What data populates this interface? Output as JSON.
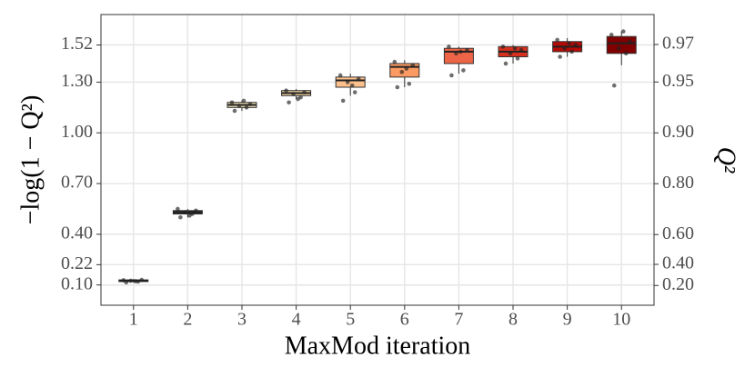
{
  "chart_data": {
    "type": "box",
    "x_label": "MaxMod iteration",
    "y_label": "−log(1 − Q²)",
    "y2_label": "Q²",
    "y2_scale": "neglog10-one-minus",
    "categories": [
      "1",
      "2",
      "3",
      "4",
      "5",
      "6",
      "7",
      "8",
      "9",
      "10"
    ],
    "boxes": [
      {
        "whisker_low": 0.115,
        "q1": 0.12,
        "median": 0.125,
        "q3": 0.13,
        "whisker_high": 0.135,
        "color": "#3a3a3a",
        "points": [
          0.115,
          0.12,
          0.125,
          0.13,
          0.128,
          0.122
        ]
      },
      {
        "whisker_low": 0.5,
        "q1": 0.52,
        "median": 0.53,
        "q3": 0.54,
        "whisker_high": 0.55,
        "color": "#2e2e2e",
        "points": [
          0.5,
          0.52,
          0.53,
          0.54,
          0.55,
          0.51
        ]
      },
      {
        "whisker_low": 1.13,
        "q1": 1.15,
        "median": 1.165,
        "q3": 1.18,
        "whisker_high": 1.19,
        "color": "#f3e3b6",
        "points": [
          1.13,
          1.15,
          1.16,
          1.17,
          1.18,
          1.19
        ]
      },
      {
        "whisker_low": 1.2,
        "q1": 1.22,
        "median": 1.235,
        "q3": 1.25,
        "whisker_high": 1.26,
        "color": "#f8d8a4",
        "points": [
          1.18,
          1.21,
          1.23,
          1.24,
          1.25,
          1.2
        ]
      },
      {
        "whisker_low": 1.22,
        "q1": 1.27,
        "median": 1.31,
        "q3": 1.33,
        "whisker_high": 1.35,
        "color": "#fbc08c",
        "points": [
          1.19,
          1.24,
          1.3,
          1.32,
          1.34,
          1.28
        ]
      },
      {
        "whisker_low": 1.27,
        "q1": 1.33,
        "median": 1.39,
        "q3": 1.41,
        "whisker_high": 1.43,
        "color": "#fb9a62",
        "points": [
          1.27,
          1.29,
          1.36,
          1.4,
          1.42,
          1.38
        ]
      },
      {
        "whisker_low": 1.35,
        "q1": 1.41,
        "median": 1.48,
        "q3": 1.5,
        "whisker_high": 1.51,
        "color": "#ee6446",
        "points": [
          1.34,
          1.37,
          1.47,
          1.49,
          1.51,
          1.48
        ]
      },
      {
        "whisker_low": 1.41,
        "q1": 1.45,
        "median": 1.48,
        "q3": 1.51,
        "whisker_high": 1.52,
        "color": "#d7301f",
        "points": [
          1.41,
          1.44,
          1.47,
          1.49,
          1.51,
          1.5
        ]
      },
      {
        "whisker_low": 1.45,
        "q1": 1.48,
        "median": 1.51,
        "q3": 1.54,
        "whisker_high": 1.56,
        "color": "#b50a05",
        "points": [
          1.45,
          1.48,
          1.5,
          1.52,
          1.55,
          1.53
        ]
      },
      {
        "whisker_low": 1.4,
        "q1": 1.47,
        "median": 1.53,
        "q3": 1.57,
        "whisker_high": 1.6,
        "color": "#800000",
        "points": [
          1.28,
          1.47,
          1.5,
          1.54,
          1.58,
          1.6
        ]
      }
    ],
    "point_color": "#222222",
    "ylim": [
      -0.02,
      1.7
    ],
    "yticks": [
      {
        "value": 0.1,
        "label": "0.10"
      },
      {
        "value": 0.22,
        "label": "0.22"
      },
      {
        "value": 0.4,
        "label": "0.40"
      },
      {
        "value": 0.7,
        "label": "0.70"
      },
      {
        "value": 1.0,
        "label": "1.00"
      },
      {
        "value": 1.3,
        "label": "1.30"
      },
      {
        "value": 1.52,
        "label": "1.52"
      }
    ],
    "y2lim": [
      -0.047,
      0.98
    ],
    "y2ticks": [
      {
        "value": 0.2,
        "label": "0.20"
      },
      {
        "value": 0.4,
        "label": "0.40"
      },
      {
        "value": 0.6,
        "label": "0.60"
      },
      {
        "value": 0.8,
        "label": "0.80"
      },
      {
        "value": 0.9,
        "label": "0.90"
      },
      {
        "value": 0.95,
        "label": "0.95"
      },
      {
        "value": 0.97,
        "label": "0.97"
      }
    ],
    "grid": true
  }
}
